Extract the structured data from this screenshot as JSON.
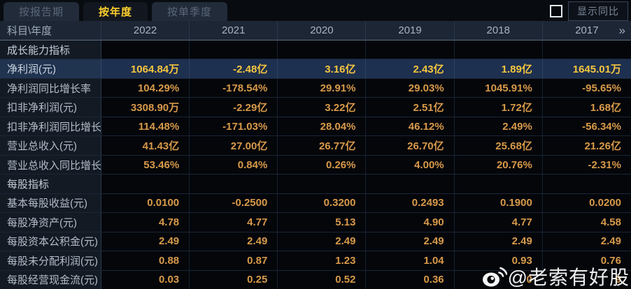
{
  "tabs": [
    {
      "name": "tab-report-period",
      "label": "按报告期",
      "active": false
    },
    {
      "name": "tab-annual",
      "label": "按年度",
      "active": true
    },
    {
      "name": "tab-quarterly",
      "label": "按单季度",
      "active": false
    }
  ],
  "controls": {
    "show_yoy_label": "显示同比",
    "checkbox_checked": false
  },
  "table": {
    "corner_label": "科目\\年度",
    "years": [
      "2022",
      "2021",
      "2020",
      "2019",
      "2018",
      "2017"
    ],
    "more_icon": "»",
    "rows": [
      {
        "type": "section",
        "label": "成长能力指标",
        "values": [
          "",
          "",
          "",
          "",
          "",
          ""
        ]
      },
      {
        "type": "highlight",
        "label": "净利润(元)",
        "values": [
          "1064.84万",
          "-2.48亿",
          "3.16亿",
          "2.43亿",
          "1.89亿",
          "1645.01万"
        ]
      },
      {
        "type": "data",
        "label": "净利润同比增长率",
        "values": [
          "104.29%",
          "-178.54%",
          "29.91%",
          "29.03%",
          "1045.91%",
          "-95.65%"
        ]
      },
      {
        "type": "data",
        "label": "扣非净利润(元)",
        "values": [
          "3308.90万",
          "-2.29亿",
          "3.22亿",
          "2.51亿",
          "1.72亿",
          "1.68亿"
        ]
      },
      {
        "type": "data",
        "label": "扣非净利润同比增长率",
        "values": [
          "114.48%",
          "-171.03%",
          "28.04%",
          "46.12%",
          "2.49%",
          "-56.34%"
        ]
      },
      {
        "type": "data",
        "label": "营业总收入(元)",
        "values": [
          "41.43亿",
          "27.00亿",
          "26.77亿",
          "26.70亿",
          "25.68亿",
          "21.26亿"
        ]
      },
      {
        "type": "data",
        "label": "营业总收入同比增长率",
        "values": [
          "53.46%",
          "0.84%",
          "0.26%",
          "4.00%",
          "20.76%",
          "-2.31%"
        ]
      },
      {
        "type": "section",
        "label": "每股指标",
        "values": [
          "",
          "",
          "",
          "",
          "",
          ""
        ]
      },
      {
        "type": "data",
        "label": "基本每股收益(元)",
        "values": [
          "0.0100",
          "-0.2500",
          "0.3200",
          "0.2493",
          "0.1900",
          "0.0200"
        ]
      },
      {
        "type": "data",
        "label": "每股净资产(元)",
        "values": [
          "4.78",
          "4.77",
          "5.13",
          "4.90",
          "4.77",
          "4.58"
        ]
      },
      {
        "type": "data",
        "label": "每股资本公积金(元)",
        "values": [
          "2.49",
          "2.49",
          "2.49",
          "2.49",
          "2.49",
          "2.49"
        ]
      },
      {
        "type": "data",
        "label": "每股未分配利润(元)",
        "values": [
          "0.88",
          "0.87",
          "1.23",
          "1.04",
          "0.93",
          "0.76"
        ]
      },
      {
        "type": "data",
        "label": "每股经营现金流(元)",
        "values": [
          "0.03",
          "0.25",
          "0.52",
          "0.36",
          "0",
          "9"
        ]
      }
    ]
  },
  "watermark": {
    "text": "@老索有好股",
    "icon": "weibo-icon"
  },
  "colors": {
    "accent_yellow": "#ffd02e",
    "value_orange": "#d89a4a",
    "highlight_value_yellow": "#f5c63e",
    "highlight_row_bg": "#1e3050",
    "header_bg": "#1c2634",
    "label_cell_bg": "#131a24"
  }
}
